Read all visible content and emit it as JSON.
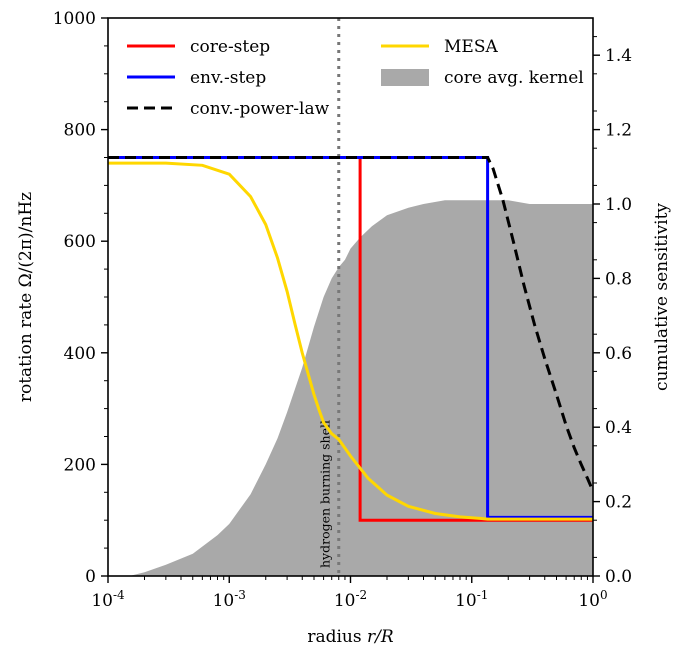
{
  "chart_data": {
    "type": "line",
    "xscale": "log",
    "xlim": [
      0.0001,
      1
    ],
    "ylim": [
      0,
      1000
    ],
    "y2lim": [
      0,
      1.5
    ],
    "xlabel": "radius r/R",
    "ylabel": "rotation rate Ω/(2π)/nHz",
    "y2label": "cumulative sensitivity",
    "x_ticks": [
      {
        "value": 0.0001,
        "base": "10",
        "exp": "-4"
      },
      {
        "value": 0.001,
        "base": "10",
        "exp": "-3"
      },
      {
        "value": 0.01,
        "base": "10",
        "exp": "-2"
      },
      {
        "value": 0.1,
        "base": "10",
        "exp": "-1"
      },
      {
        "value": 1,
        "base": "10",
        "exp": "0"
      }
    ],
    "y_ticks": [
      {
        "value": 0,
        "label": "0"
      },
      {
        "value": 200,
        "label": "200"
      },
      {
        "value": 400,
        "label": "400"
      },
      {
        "value": 600,
        "label": "600"
      },
      {
        "value": 800,
        "label": "800"
      },
      {
        "value": 1000,
        "label": "1000"
      }
    ],
    "y2_ticks": [
      {
        "value": 0.0,
        "label": "0.0"
      },
      {
        "value": 0.2,
        "label": "0.2"
      },
      {
        "value": 0.4,
        "label": "0.4"
      },
      {
        "value": 0.6,
        "label": "0.6"
      },
      {
        "value": 0.8,
        "label": "0.8"
      },
      {
        "value": 1.0,
        "label": "1.0"
      },
      {
        "value": 1.2,
        "label": "1.2"
      },
      {
        "value": 1.4,
        "label": "1.4"
      }
    ],
    "annotation": {
      "text": "hydrogen burning shell",
      "x": 0.008
    },
    "series": [
      {
        "name": "core-step",
        "color": "#ff0000",
        "dash": "solid",
        "axis": "left",
        "x": [
          0.0001,
          0.012,
          0.012,
          1
        ],
        "y": [
          750,
          750,
          100,
          100
        ]
      },
      {
        "name": "env.-step",
        "color": "#0000ff",
        "dash": "solid",
        "axis": "left",
        "x": [
          0.0001,
          0.135,
          0.135,
          1
        ],
        "y": [
          750,
          750,
          105,
          105
        ]
      },
      {
        "name": "conv.-power-law",
        "color": "#000000",
        "dash": "dashed",
        "axis": "left",
        "x": [
          0.0001,
          0.135,
          0.15,
          0.18,
          0.22,
          0.27,
          0.33,
          0.4,
          0.5,
          0.6,
          0.7,
          0.8,
          0.9,
          1.0
        ],
        "y": [
          750,
          750,
          730,
          675,
          600,
          520,
          450,
          390,
          325,
          270,
          230,
          200,
          175,
          152
        ]
      },
      {
        "name": "MESA",
        "color": "#ffd700",
        "dash": "solid",
        "axis": "left",
        "x": [
          0.0001,
          0.0003,
          0.0006,
          0.001,
          0.0015,
          0.002,
          0.0025,
          0.003,
          0.0035,
          0.004,
          0.0045,
          0.005,
          0.0055,
          0.006,
          0.007,
          0.008,
          0.01,
          0.014,
          0.02,
          0.03,
          0.05,
          0.08,
          0.12,
          0.135,
          1.0
        ],
        "y": [
          740,
          740,
          736,
          720,
          680,
          630,
          570,
          510,
          450,
          400,
          360,
          325,
          298,
          275,
          255,
          245,
          215,
          175,
          145,
          125,
          112,
          106,
          103,
          102,
          102
        ]
      },
      {
        "name": "core avg. kernel",
        "color": "#a9a9a9",
        "type": "area",
        "axis": "right",
        "x": [
          0.0001,
          0.00015,
          0.0002,
          0.0003,
          0.0005,
          0.0008,
          0.001,
          0.0015,
          0.002,
          0.0025,
          0.003,
          0.004,
          0.005,
          0.006,
          0.007,
          0.008,
          0.009,
          0.01,
          0.012,
          0.015,
          0.02,
          0.03,
          0.04,
          0.06,
          0.1,
          0.15,
          0.2,
          0.3,
          0.5,
          1.0
        ],
        "y": [
          0.0,
          0.0,
          0.01,
          0.03,
          0.06,
          0.11,
          0.14,
          0.22,
          0.3,
          0.37,
          0.44,
          0.56,
          0.67,
          0.75,
          0.8,
          0.83,
          0.85,
          0.88,
          0.91,
          0.94,
          0.97,
          0.99,
          1.0,
          1.01,
          1.01,
          1.01,
          1.01,
          1.0,
          1.0,
          1.0
        ]
      }
    ],
    "legend": {
      "placement": "top",
      "items": [
        {
          "label": "core-step",
          "color": "#ff0000",
          "kind": "line"
        },
        {
          "label": "MESA",
          "color": "#ffd700",
          "kind": "line"
        },
        {
          "label": "env.-step",
          "color": "#0000ff",
          "kind": "line"
        },
        {
          "label": "core avg. kernel",
          "color": "#a9a9a9",
          "kind": "patch"
        },
        {
          "label": "conv.-power-law",
          "color": "#000000",
          "kind": "dashed"
        }
      ]
    }
  }
}
